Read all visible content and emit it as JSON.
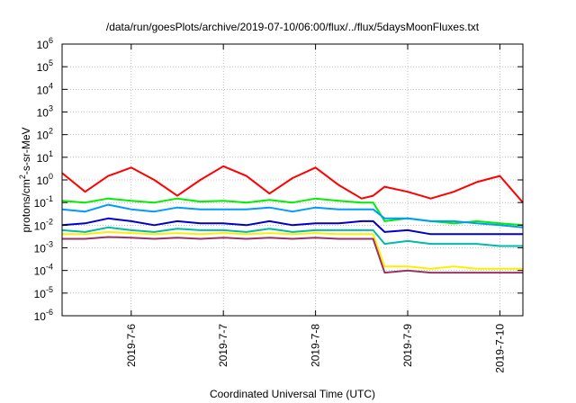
{
  "chart_data": {
    "type": "line",
    "title": "/data/run/goesPlots/archive/2019-07-10/06:00/flux/../flux/5daysMoonFluxes.txt",
    "xlabel": "Coordinated Universal Time (UTC)",
    "ylabel": "protons/cm2-s-sr-MeV",
    "ylabel_parts": {
      "pre": "protons/cm",
      "sup": "2",
      "post": "-s-sr-MeV"
    },
    "yscale": "log",
    "ylim_exponents": [
      -6,
      6
    ],
    "y_ticks": [
      {
        "base": "10",
        "exp": "-6"
      },
      {
        "base": "10",
        "exp": "-5"
      },
      {
        "base": "10",
        "exp": "-4"
      },
      {
        "base": "10",
        "exp": "-3"
      },
      {
        "base": "10",
        "exp": "-2"
      },
      {
        "base": "10",
        "exp": "-1"
      },
      {
        "base": "10",
        "exp": "0"
      },
      {
        "base": "10",
        "exp": "1"
      },
      {
        "base": "10",
        "exp": "2"
      },
      {
        "base": "10",
        "exp": "3"
      },
      {
        "base": "10",
        "exp": "4"
      },
      {
        "base": "10",
        "exp": "5"
      },
      {
        "base": "10",
        "exp": "6"
      }
    ],
    "xlim": [
      "2019-07-05 06:00",
      "2019-07-10 06:00"
    ],
    "x_ticks": [
      {
        "label": "2019-7-6",
        "value": "2019-07-06 00:00"
      },
      {
        "label": "2019-7-7",
        "value": "2019-07-07 00:00"
      },
      {
        "label": "2019-7-8",
        "value": "2019-07-08 00:00"
      },
      {
        "label": "2019-7-9",
        "value": "2019-07-09 00:00"
      },
      {
        "label": "2019-7-10",
        "value": "2019-07-10 00:00"
      }
    ],
    "grid": true,
    "x": [
      "2019-07-05 06:00",
      "2019-07-05 12:00",
      "2019-07-05 18:00",
      "2019-07-06 00:00",
      "2019-07-06 06:00",
      "2019-07-06 12:00",
      "2019-07-06 18:00",
      "2019-07-07 00:00",
      "2019-07-07 06:00",
      "2019-07-07 12:00",
      "2019-07-07 18:00",
      "2019-07-08 00:00",
      "2019-07-08 06:00",
      "2019-07-08 12:00",
      "2019-07-08 15:00",
      "2019-07-08 18:00",
      "2019-07-09 00:00",
      "2019-07-09 06:00",
      "2019-07-09 12:00",
      "2019-07-09 18:00",
      "2019-07-10 00:00",
      "2019-07-10 06:00"
    ],
    "series": [
      {
        "color": "#ff0000",
        "values": [
          2.0,
          0.3,
          1.5,
          3.5,
          1.0,
          0.2,
          1.0,
          4.0,
          1.5,
          0.25,
          1.2,
          3.5,
          0.6,
          0.15,
          0.2,
          0.5,
          0.3,
          0.15,
          0.3,
          0.8,
          1.5,
          0.1
        ]
      },
      {
        "color": "#00ee00",
        "values": [
          0.12,
          0.1,
          0.15,
          0.12,
          0.1,
          0.15,
          0.11,
          0.12,
          0.1,
          0.13,
          0.1,
          0.15,
          0.12,
          0.1,
          0.1,
          0.015,
          0.02,
          0.015,
          0.012,
          0.015,
          0.012,
          0.01
        ]
      },
      {
        "color": "#0099ff",
        "values": [
          0.05,
          0.04,
          0.08,
          0.05,
          0.04,
          0.06,
          0.05,
          0.05,
          0.05,
          0.06,
          0.04,
          0.06,
          0.05,
          0.05,
          0.05,
          0.02,
          0.02,
          0.015,
          0.015,
          0.012,
          0.01,
          0.008
        ]
      },
      {
        "color": "#0000cc",
        "values": [
          0.01,
          0.012,
          0.02,
          0.015,
          0.01,
          0.015,
          0.012,
          0.012,
          0.01,
          0.015,
          0.01,
          0.012,
          0.012,
          0.015,
          0.015,
          0.005,
          0.006,
          0.004,
          0.004,
          0.004,
          0.004,
          0.004
        ]
      },
      {
        "color": "#00bbaa",
        "values": [
          0.006,
          0.005,
          0.008,
          0.006,
          0.005,
          0.007,
          0.006,
          0.006,
          0.005,
          0.007,
          0.005,
          0.006,
          0.006,
          0.006,
          0.006,
          0.0015,
          0.002,
          0.0015,
          0.0015,
          0.0015,
          0.0012,
          0.0012
        ]
      },
      {
        "color": "#ffee00",
        "values": [
          0.004,
          0.004,
          0.005,
          0.0045,
          0.004,
          0.0045,
          0.004,
          0.0045,
          0.004,
          0.0045,
          0.004,
          0.0045,
          0.004,
          0.004,
          0.004,
          0.00015,
          0.00015,
          0.00012,
          0.00015,
          0.00012,
          0.00012,
          0.00012
        ]
      },
      {
        "color": "#993366",
        "values": [
          0.0025,
          0.0025,
          0.003,
          0.0028,
          0.0025,
          0.0028,
          0.0025,
          0.0028,
          0.0025,
          0.0028,
          0.0025,
          0.0028,
          0.0025,
          0.0025,
          0.0025,
          8e-05,
          0.0001,
          8e-05,
          8e-05,
          8e-05,
          8e-05,
          8e-05
        ]
      }
    ]
  }
}
